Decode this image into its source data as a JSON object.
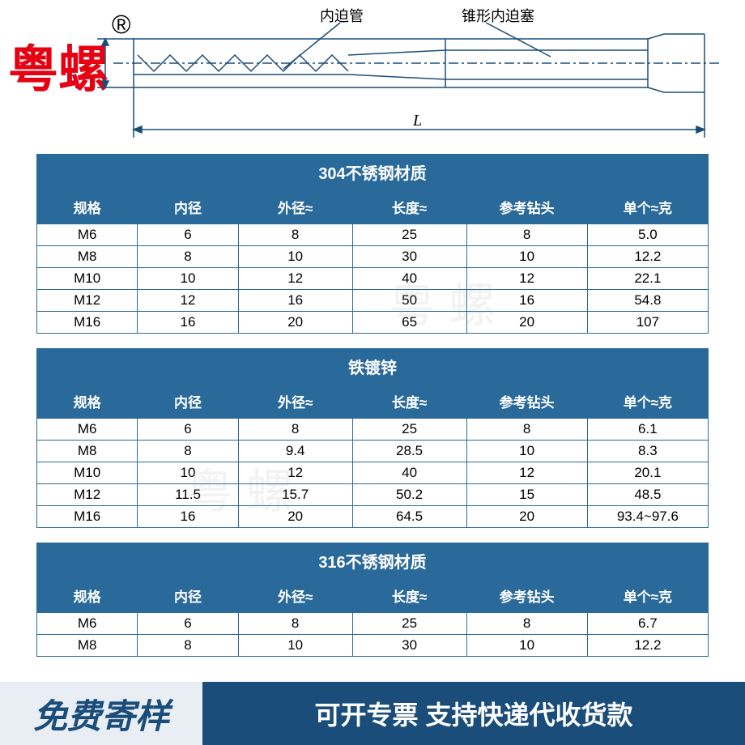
{
  "brand": {
    "text": "粤螺",
    "symbol": "®",
    "color": "#e60012"
  },
  "diagram": {
    "label_left": "内迫管",
    "label_right": "锥形内迫塞",
    "dim_label": "L",
    "stroke": "#1a4d7a"
  },
  "watermarks": [
    "粤 螺",
    "粤 螺"
  ],
  "tables": [
    {
      "title": "304不锈钢材质",
      "columns": [
        "规格",
        "内径",
        "外径≈",
        "长度≈",
        "参考钻头",
        "单个≈克"
      ],
      "rows": [
        [
          "M6",
          "6",
          "8",
          "25",
          "8",
          "5.0"
        ],
        [
          "M8",
          "8",
          "10",
          "30",
          "10",
          "12.2"
        ],
        [
          "M10",
          "10",
          "12",
          "40",
          "12",
          "22.1"
        ],
        [
          "M12",
          "12",
          "16",
          "50",
          "16",
          "54.8"
        ],
        [
          "M16",
          "16",
          "20",
          "65",
          "20",
          "107"
        ]
      ]
    },
    {
      "title": "铁镀锌",
      "columns": [
        "规格",
        "内径",
        "外径≈",
        "长度≈",
        "参考钻头",
        "单个≈克"
      ],
      "rows": [
        [
          "M6",
          "6",
          "8",
          "25",
          "8",
          "6.1"
        ],
        [
          "M8",
          "8",
          "9.4",
          "28.5",
          "10",
          "8.3"
        ],
        [
          "M10",
          "10",
          "12",
          "40",
          "12",
          "20.1"
        ],
        [
          "M12",
          "11.5",
          "15.7",
          "50.2",
          "15",
          "48.5"
        ],
        [
          "M16",
          "16",
          "20",
          "64.5",
          "20",
          "93.4~97.6"
        ]
      ]
    },
    {
      "title": "316不锈钢材质",
      "columns": [
        "规格",
        "内径",
        "外径≈",
        "长度≈",
        "参考钻头",
        "单个≈克"
      ],
      "rows": [
        [
          "M6",
          "6",
          "8",
          "25",
          "8",
          "6.7"
        ],
        [
          "M8",
          "8",
          "10",
          "30",
          "10",
          "12.2"
        ]
      ]
    }
  ],
  "footer": {
    "left": "免费寄样",
    "right": "可开专票 支持快递代收货款",
    "left_bg": "#e8eef3",
    "left_color": "#1a4d7a",
    "right_bg": "#1a4d7a",
    "right_color": "#ffffff"
  },
  "styling": {
    "table_header_bg": "#2a6a9b",
    "table_header_color": "#ffffff",
    "table_cell_bg": "#ffffff",
    "table_border": "#2a6a9b",
    "col_widths_pct": [
      15,
      15,
      17,
      17,
      18,
      18
    ]
  }
}
